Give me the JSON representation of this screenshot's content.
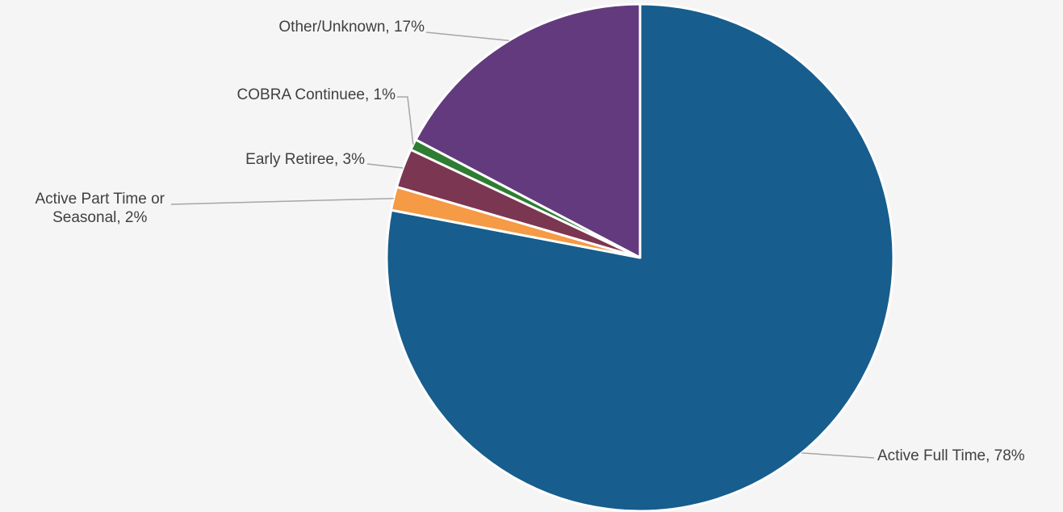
{
  "chart_data": {
    "type": "pie",
    "title": "",
    "slices": [
      {
        "label": "Active Full Time",
        "value": 78,
        "label_text": "Active Full Time, 78%",
        "color": "#175d8d"
      },
      {
        "label": "Active Part Time or Seasonal",
        "value": 1.5,
        "label_text": "Active Part Time or\nSeasonal, 2%",
        "color": "#f59a45"
      },
      {
        "label": "Early Retiree",
        "value": 2.5,
        "label_text": "Early Retiree, 3%",
        "color": "#7b3651"
      },
      {
        "label": "COBRA Continuee",
        "value": 0.7,
        "label_text": "COBRA Continuee, 1%",
        "color": "#2e7d32"
      },
      {
        "label": "Other/Unknown",
        "value": 17.3,
        "label_text": "Other/Unknown, 17%",
        "color": "#633a7e"
      }
    ],
    "start_angle": "12 o'clock",
    "direction": "clockwise",
    "legend": "none",
    "data_labels": "outside with leader lines"
  }
}
